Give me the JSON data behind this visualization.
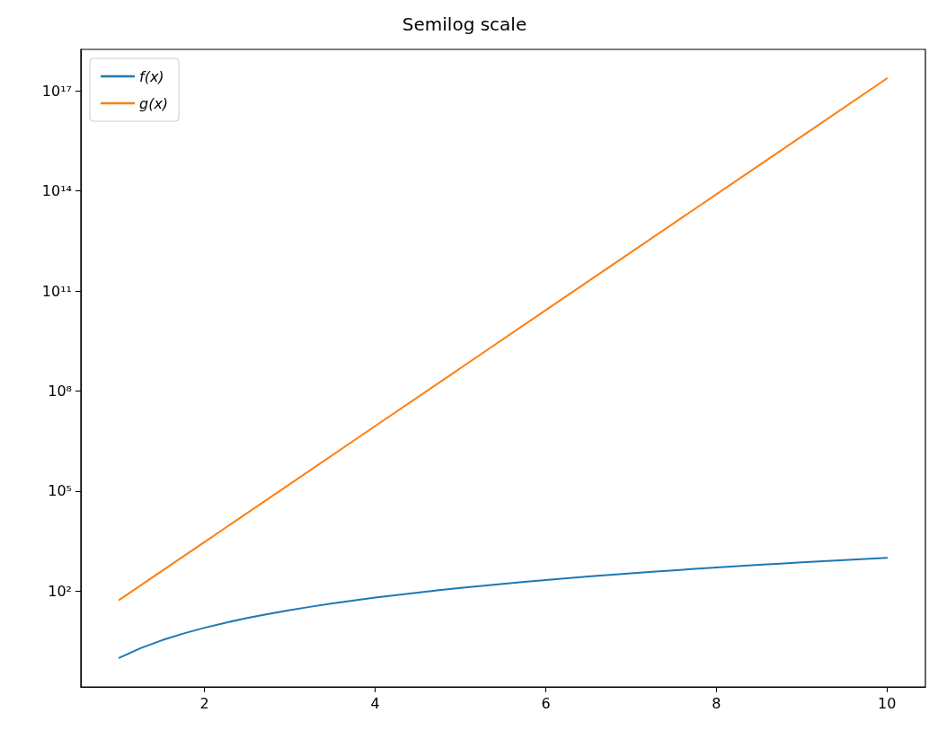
{
  "chart_data": {
    "type": "line",
    "title": "Semilog scale",
    "log": "y",
    "legend": "top left",
    "grid": false,
    "marker": "none",
    "line_style": "solid",
    "xlim": [
      0.55,
      10.45
    ],
    "xticks": [
      2,
      4,
      6,
      8,
      10
    ],
    "ylim": [
      0.135,
      1.74e+18
    ],
    "yticks": [
      {
        "value": 100,
        "label": "10²"
      },
      {
        "value": 100000,
        "label": "10⁵"
      },
      {
        "value": 100000000,
        "label": "10⁸"
      },
      {
        "value": 100000000000,
        "label": "10¹¹"
      },
      {
        "value": 100000000000000,
        "label": "10¹⁴"
      },
      {
        "value": 100000000000000000,
        "label": "10¹⁷"
      }
    ],
    "series": [
      {
        "name": "f(x)",
        "color": "#1f77b4",
        "x": [
          1,
          1.25,
          1.5,
          1.75,
          2,
          2.25,
          2.5,
          2.75,
          3,
          3.25,
          3.5,
          3.75,
          4,
          4.25,
          4.5,
          4.75,
          5,
          5.25,
          5.5,
          5.75,
          6,
          6.25,
          6.5,
          6.75,
          7,
          7.25,
          7.5,
          7.75,
          8,
          8.25,
          8.5,
          8.75,
          9,
          9.25,
          9.5,
          9.75,
          10
        ],
        "values": [
          1,
          1.953,
          3.375,
          5.359,
          8,
          11.39,
          15.63,
          20.8,
          27,
          34.33,
          42.88,
          52.73,
          64,
          76.77,
          91.13,
          107.2,
          125,
          144.7,
          166.4,
          190.1,
          216,
          244.1,
          274.6,
          307.5,
          343,
          381.1,
          421.9,
          465.5,
          512,
          561.5,
          614.1,
          669.9,
          729,
          791.5,
          857.4,
          926.9,
          1000
        ]
      },
      {
        "name": "g(x)",
        "color": "#ff7f0e",
        "x": [
          1,
          2,
          3,
          4,
          5,
          6,
          7,
          8,
          9,
          10
        ],
        "values": [
          54.6,
          2981,
          162755,
          8886000,
          485200000,
          26490000000,
          1446000000000,
          78960000000000,
          4311000000000000,
          235400000000000000
        ]
      }
    ]
  }
}
